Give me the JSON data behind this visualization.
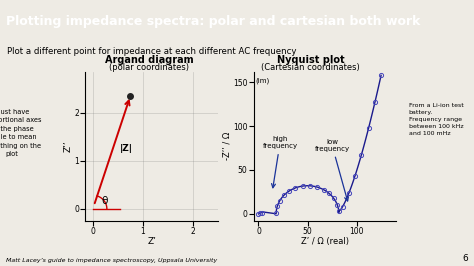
{
  "title": "Plotting impedance spectra: polar and cartesian both work",
  "title_bg": "#1c3f6e",
  "subtitle": "Plot a different point for impedance at each different AC frequency",
  "background": "#eeebe4",
  "footer": "Matt Lacey’s guide to impedance spectroscopy, Uppsala University",
  "slide_num": "6",
  "argand": {
    "title_line1": "Argand diagram",
    "title_line2": "(polar coordinates)",
    "point_x": 0.75,
    "point_y": 2.35,
    "xlim": [
      -0.15,
      2.5
    ],
    "ylim": [
      -0.25,
      2.85
    ],
    "xticks": [
      0,
      1,
      2
    ],
    "yticks": [
      0,
      1,
      2
    ],
    "xlabel": "Z’",
    "ylabel": "Z’’",
    "arrow_color": "#cc0000",
    "note_text": "Must have\nproportional axes\nfor the phase\nangle to mean\nsomething on the\nplot",
    "IZ_label": "|Z|",
    "theta_label": "θ"
  },
  "nyquist": {
    "title_line1": "Nyquist plot",
    "title_line2": "(Cartesian coordinates)",
    "xlim": [
      -5,
      140
    ],
    "ylim": [
      -8,
      162
    ],
    "xticks": [
      0,
      50,
      100
    ],
    "yticks": [
      0,
      50,
      100,
      150
    ],
    "xlabel": "Z’ / Ω (real)",
    "ylabel": "-Z’’ / Ω",
    "ylabel_top": "(im)",
    "note_right": "From a Li-ion test\nbattery.\nFrequency range\nbetween 100 kHz\nand 100 mHz",
    "annot_high": "high\nfrequency",
    "annot_low": "low\nfrequency",
    "line_color": "#1a1a8c",
    "circle_color": "#4444bb"
  }
}
